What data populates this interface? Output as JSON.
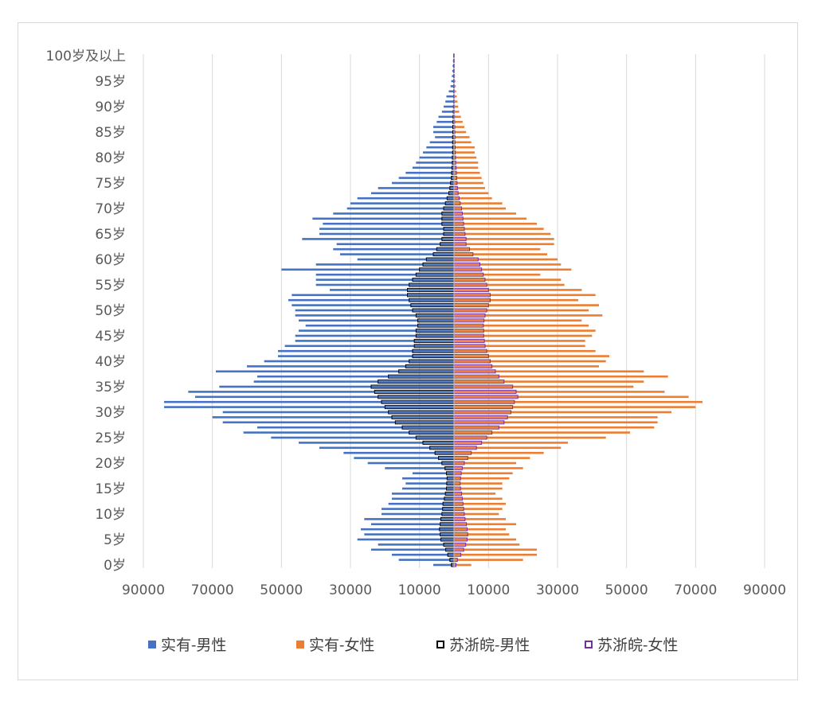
{
  "chart_data": {
    "type": "bar",
    "orientation": "horizontal",
    "title": "",
    "xlabel": "",
    "ylabel": "",
    "xlim": [
      -90000,
      90000
    ],
    "x_tick_labels": [
      "90000",
      "70000",
      "50000",
      "30000",
      "10000",
      "10000",
      "30000",
      "50000",
      "70000",
      "90000"
    ],
    "x_tick_values": [
      -90000,
      -70000,
      -50000,
      -30000,
      -10000,
      10000,
      30000,
      50000,
      70000,
      90000
    ],
    "categories": [
      "0岁",
      "1岁",
      "2岁",
      "3岁",
      "4岁",
      "5岁",
      "6岁",
      "7岁",
      "8岁",
      "9岁",
      "10岁",
      "11岁",
      "12岁",
      "13岁",
      "14岁",
      "15岁",
      "16岁",
      "17岁",
      "18岁",
      "19岁",
      "20岁",
      "21岁",
      "22岁",
      "23岁",
      "24岁",
      "25岁",
      "26岁",
      "27岁",
      "28岁",
      "29岁",
      "30岁",
      "31岁",
      "32岁",
      "33岁",
      "34岁",
      "35岁",
      "36岁",
      "37岁",
      "38岁",
      "39岁",
      "40岁",
      "41岁",
      "42岁",
      "43岁",
      "44岁",
      "45岁",
      "46岁",
      "47岁",
      "48岁",
      "49岁",
      "50岁",
      "51岁",
      "52岁",
      "53岁",
      "54岁",
      "55岁",
      "56岁",
      "57岁",
      "58岁",
      "59岁",
      "60岁",
      "61岁",
      "62岁",
      "63岁",
      "64岁",
      "65岁",
      "66岁",
      "67岁",
      "68岁",
      "69岁",
      "70岁",
      "71岁",
      "72岁",
      "73岁",
      "74岁",
      "75岁",
      "76岁",
      "77岁",
      "78岁",
      "79岁",
      "80岁",
      "81岁",
      "82岁",
      "83岁",
      "84岁",
      "85岁",
      "86岁",
      "87岁",
      "88岁",
      "89岁",
      "90岁",
      "91岁",
      "92岁",
      "93岁",
      "94岁",
      "95岁",
      "96岁",
      "97岁",
      "98岁",
      "99岁",
      "100岁及以上"
    ],
    "y_tick_labels": [
      "0岁",
      "5岁",
      "10岁",
      "15岁",
      "20岁",
      "25岁",
      "30岁",
      "35岁",
      "40岁",
      "45岁",
      "50岁",
      "55岁",
      "60岁",
      "65岁",
      "70岁",
      "75岁",
      "80岁",
      "85岁",
      "90岁",
      "95岁",
      "100岁及以上"
    ],
    "series": [
      {
        "name": "实有-男性",
        "color": "#4472c4",
        "side": "left",
        "values": [
          6000,
          16000,
          18000,
          24000,
          22000,
          28000,
          26000,
          27000,
          24000,
          26000,
          21000,
          21000,
          19000,
          18000,
          18000,
          15000,
          14000,
          15000,
          12000,
          20000,
          25000,
          29000,
          32000,
          39000,
          45000,
          53000,
          61000,
          57000,
          67000,
          70000,
          67000,
          84000,
          84000,
          75000,
          77000,
          68000,
          58000,
          57000,
          69000,
          60000,
          55000,
          51000,
          51000,
          49000,
          46000,
          46000,
          45000,
          43000,
          45000,
          46000,
          46000,
          47000,
          48000,
          47000,
          36000,
          40000,
          40000,
          40000,
          50000,
          40000,
          28000,
          33000,
          35000,
          34000,
          44000,
          39000,
          39000,
          38000,
          41000,
          35000,
          31000,
          30000,
          28000,
          24000,
          22000,
          18000,
          16000,
          14000,
          12000,
          11000,
          10000,
          9000,
          8000,
          7000,
          5500,
          6000,
          6000,
          5000,
          4500,
          3500,
          3000,
          2500,
          2200,
          1500,
          1000,
          800,
          600,
          500,
          400,
          300,
          200
        ]
      },
      {
        "name": "实有-女性",
        "color": "#ed7d31",
        "side": "right",
        "values": [
          5000,
          20000,
          24000,
          24000,
          19000,
          18000,
          16000,
          15000,
          18000,
          15000,
          13000,
          14000,
          15000,
          14000,
          12000,
          14000,
          14000,
          16000,
          17000,
          20000,
          18000,
          22000,
          26000,
          31000,
          33000,
          44000,
          51000,
          58000,
          59000,
          59000,
          63000,
          70000,
          72000,
          68000,
          61000,
          52000,
          55000,
          62000,
          55000,
          42000,
          44000,
          45000,
          41000,
          38000,
          38000,
          40000,
          41000,
          39000,
          37000,
          43000,
          39000,
          42000,
          36000,
          41000,
          37000,
          32000,
          31000,
          25000,
          34000,
          31000,
          30000,
          27000,
          25000,
          29000,
          29000,
          28000,
          26000,
          24000,
          21000,
          18000,
          15000,
          14000,
          11000,
          10000,
          9000,
          8500,
          8000,
          7500,
          7000,
          7000,
          6500,
          6000,
          6000,
          5000,
          4500,
          3500,
          3000,
          2500,
          2000,
          1500,
          1200,
          1000,
          800,
          600,
          500,
          400,
          300,
          200,
          150,
          100,
          100
        ]
      },
      {
        "name": "苏浙皖-男性",
        "color": "#000000",
        "side": "left",
        "style": "outline",
        "values": [
          800,
          1200,
          1800,
          2400,
          3000,
          3800,
          4000,
          4200,
          4000,
          3800,
          3500,
          3300,
          3200,
          2800,
          2500,
          2200,
          2100,
          2000,
          2200,
          2600,
          3500,
          4500,
          5500,
          7000,
          9000,
          11000,
          13000,
          15000,
          17000,
          18000,
          19000,
          20000,
          21000,
          22000,
          23000,
          24000,
          22000,
          19000,
          16000,
          14000,
          13000,
          12000,
          12000,
          11500,
          11500,
          11000,
          11000,
          10500,
          10500,
          11000,
          12000,
          12500,
          13000,
          13500,
          13500,
          13000,
          12000,
          11000,
          10000,
          9000,
          8000,
          6000,
          5000,
          4000,
          3500,
          3000,
          3000,
          3500,
          3500,
          3500,
          3000,
          2500,
          2000,
          1500,
          1200,
          1000,
          800,
          700,
          600,
          500,
          500,
          400,
          400,
          400,
          400,
          350,
          350,
          300,
          250,
          200,
          150,
          120,
          100,
          80,
          60,
          50,
          40,
          30,
          20,
          20,
          10
        ]
      },
      {
        "name": "苏浙皖-女性",
        "color": "#7030a0",
        "side": "right",
        "style": "outline",
        "values": [
          600,
          1000,
          2000,
          2800,
          3400,
          3800,
          4000,
          3800,
          3600,
          3200,
          3000,
          2800,
          2600,
          2400,
          2200,
          1900,
          1800,
          1900,
          2100,
          2400,
          3000,
          4000,
          5000,
          6500,
          8000,
          9500,
          11000,
          13000,
          14500,
          15500,
          16500,
          17000,
          17500,
          18500,
          18000,
          17000,
          14500,
          13000,
          12000,
          11000,
          10500,
          10000,
          9500,
          9000,
          8800,
          8600,
          8600,
          8500,
          8700,
          9000,
          9500,
          10000,
          10500,
          10500,
          10000,
          9500,
          9000,
          8500,
          8000,
          7500,
          7000,
          5500,
          4500,
          3500,
          3500,
          3200,
          3000,
          2800,
          2600,
          2400,
          2200,
          1800,
          1500,
          1200,
          1000,
          900,
          800,
          700,
          600,
          500,
          450,
          400,
          350,
          300,
          280,
          250,
          220,
          200,
          150,
          120,
          100,
          80,
          60,
          50,
          40,
          30,
          20,
          20,
          10,
          10,
          10
        ]
      }
    ],
    "grid": true,
    "legend_position": "bottom"
  },
  "legend": {
    "items": [
      {
        "label": "实有-男性",
        "color": "#4472c4",
        "style": "filled"
      },
      {
        "label": "实有-女性",
        "color": "#ed7d31",
        "style": "filled"
      },
      {
        "label": "苏浙皖-男性",
        "color": "#000000",
        "style": "outline"
      },
      {
        "label": "苏浙皖-女性",
        "color": "#7030a0",
        "style": "outline"
      }
    ]
  }
}
